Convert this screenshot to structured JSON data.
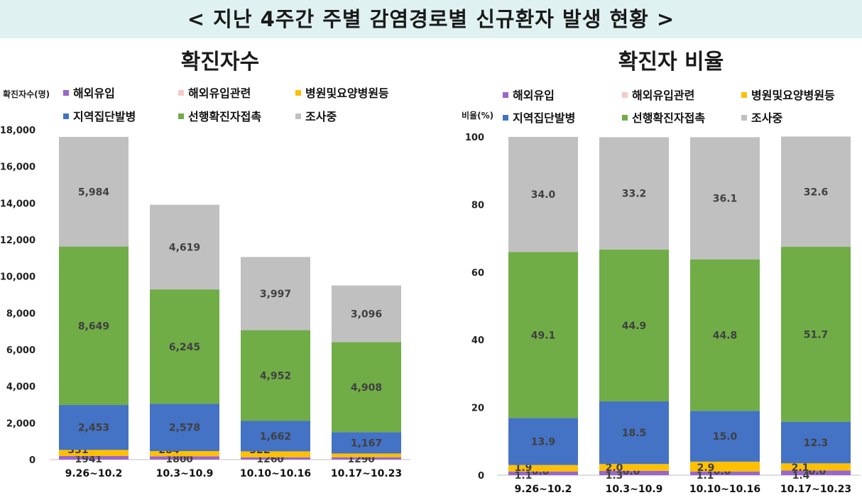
{
  "header": {
    "title": "< 지난 4주간 주별 감염경로별 신규환자 발생 현황 >"
  },
  "colors": {
    "해외유입": "#9966cc",
    "해외유입관련": "#f8c8c8",
    "병원및요양병원등": "#ffc000",
    "지역집단발병": "#4472c4",
    "선행확진자접촉": "#70ad47",
    "조사중": "#c0c0c0"
  },
  "chart_data": [
    {
      "type": "bar",
      "stacked": true,
      "title": "확진자수",
      "ylabel": "확진자수(명)",
      "ylim": [
        0,
        18000
      ],
      "yticks": [
        "0",
        "2,000",
        "4,000",
        "6,000",
        "8,000",
        "10,000",
        "12,000",
        "14,000",
        "16,000",
        "18,000"
      ],
      "ytick_values": [
        0,
        2000,
        4000,
        6000,
        8000,
        10000,
        12000,
        14000,
        16000,
        18000
      ],
      "categories": [
        "9.26~10.2",
        "10.3~10.9",
        "10.10~10.16",
        "10.17~10.23"
      ],
      "legend": [
        "해외유입",
        "해외유입관련",
        "병원및요양병원등",
        "지역집단발병",
        "선행확진자접촉",
        "조사중"
      ],
      "series": [
        {
          "name": "해외유입",
          "values": [
            194,
            180,
            126,
            129
          ],
          "labels": [
            "194",
            "180",
            "126",
            "129"
          ]
        },
        {
          "name": "해외유입관련",
          "values": [
            1,
            0,
            0,
            0
          ],
          "labels": [
            "1",
            "0",
            "0",
            "0"
          ]
        },
        {
          "name": "병원및요양병원등",
          "values": [
            331,
            284,
            322,
            202
          ],
          "labels": [
            "331",
            "284",
            "322",
            "202"
          ]
        },
        {
          "name": "지역집단발병",
          "values": [
            2453,
            2578,
            1662,
            1167
          ],
          "labels": [
            "2,453",
            "2,578",
            "1,662",
            "1,167"
          ]
        },
        {
          "name": "선행확진자접촉",
          "values": [
            8649,
            6245,
            4952,
            4908
          ],
          "labels": [
            "8,649",
            "6,245",
            "4,952",
            "4,908"
          ]
        },
        {
          "name": "조사중",
          "values": [
            5984,
            4619,
            3997,
            3096
          ],
          "labels": [
            "5,984",
            "4,619",
            "3,997",
            "3,096"
          ]
        }
      ]
    },
    {
      "type": "bar",
      "stacked": true,
      "title": "확진자 비율",
      "ylabel": "비율(%)",
      "ylim": [
        0,
        100
      ],
      "yticks": [
        "0",
        "20",
        "40",
        "60",
        "80",
        "100"
      ],
      "ytick_values": [
        0,
        20,
        40,
        60,
        80,
        100
      ],
      "categories": [
        "9.26~10.2",
        "10.3~10.9",
        "10.10~10.16",
        "10.17~10.23"
      ],
      "legend": [
        "해외유입",
        "해외유입관련",
        "병원및요양병원등",
        "지역집단발병",
        "선행확진자접촉",
        "조사중"
      ],
      "series": [
        {
          "name": "해외유입",
          "values": [
            1.1,
            1.3,
            1.1,
            1.4
          ],
          "labels": [
            "1.1",
            "1.3",
            "1.1",
            "1.4"
          ]
        },
        {
          "name": "해외유입관련",
          "values": [
            0.0,
            0.0,
            0.0,
            0.0
          ],
          "labels": [
            "0.0",
            "0.0",
            "0.0",
            "0.0"
          ]
        },
        {
          "name": "병원및요양병원등",
          "values": [
            1.9,
            2.0,
            2.9,
            2.1
          ],
          "labels": [
            "1.9",
            "2.0",
            "2.9",
            "2.1"
          ]
        },
        {
          "name": "지역집단발병",
          "values": [
            13.9,
            18.5,
            15.0,
            12.3
          ],
          "labels": [
            "13.9",
            "18.5",
            "15.0",
            "12.3"
          ]
        },
        {
          "name": "선행확진자접촉",
          "values": [
            49.1,
            44.9,
            44.8,
            51.7
          ],
          "labels": [
            "49.1",
            "44.9",
            "44.8",
            "51.7"
          ]
        },
        {
          "name": "조사중",
          "values": [
            34.0,
            33.2,
            36.1,
            32.6
          ],
          "labels": [
            "34.0",
            "33.2",
            "36.1",
            "32.6"
          ]
        }
      ]
    }
  ]
}
